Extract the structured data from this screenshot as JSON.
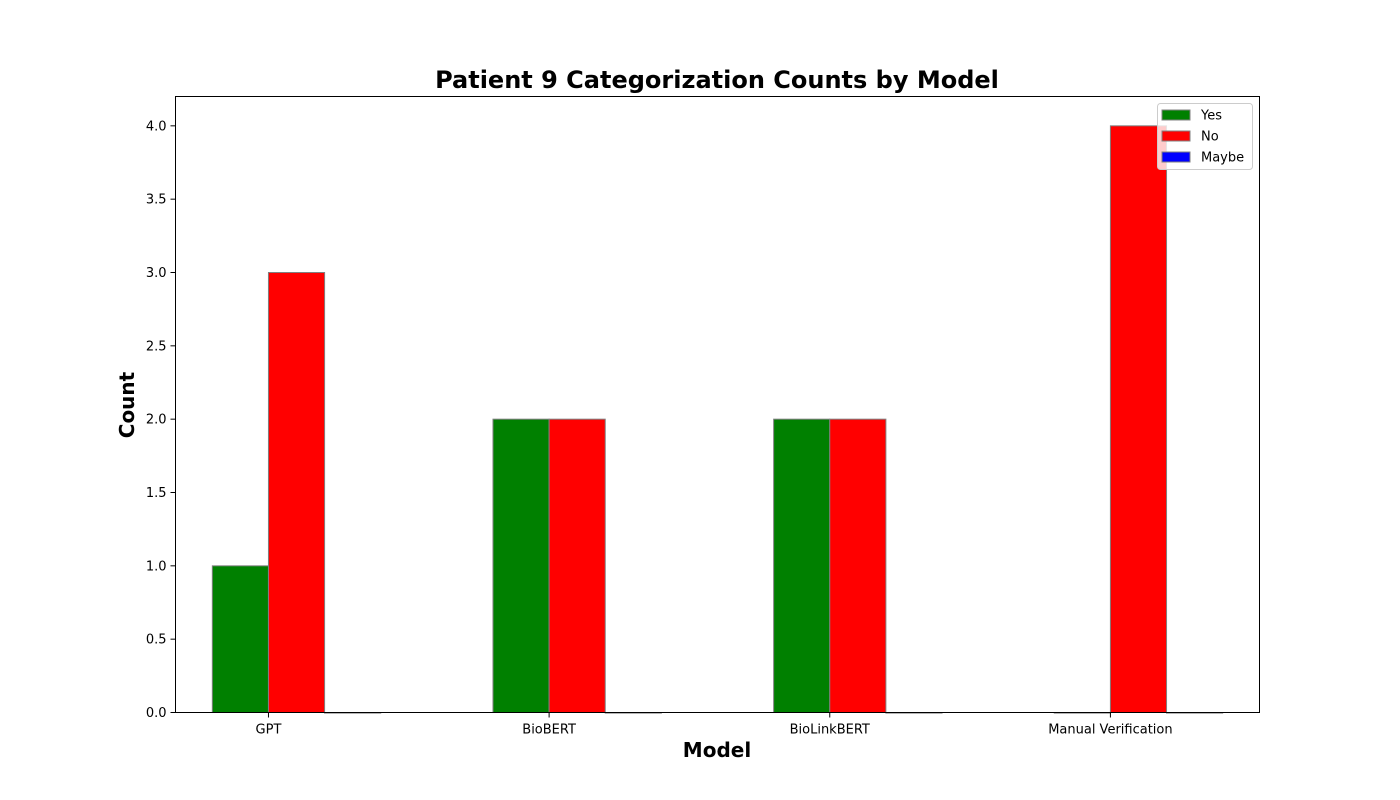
{
  "chart_data": {
    "type": "bar",
    "title": "Patient 9 Categorization Counts by Model",
    "xlabel": "Model",
    "ylabel": "Count",
    "categories": [
      "GPT",
      "BioBERT",
      "BioLinkBERT",
      "Manual Verification"
    ],
    "series": [
      {
        "name": "Yes",
        "color": "#008000",
        "values": [
          1,
          2,
          2,
          0
        ]
      },
      {
        "name": "No",
        "color": "#ff0000",
        "values": [
          3,
          2,
          2,
          4
        ]
      },
      {
        "name": "Maybe",
        "color": "#0000ff",
        "values": [
          0,
          0,
          0,
          0
        ]
      }
    ],
    "ylim": [
      0,
      4.2
    ],
    "yticks": [
      "0.0",
      "0.5",
      "1.0",
      "1.5",
      "2.0",
      "2.5",
      "3.0",
      "3.5",
      "4.0"
    ],
    "grid": false,
    "legend_position": "top-right"
  }
}
